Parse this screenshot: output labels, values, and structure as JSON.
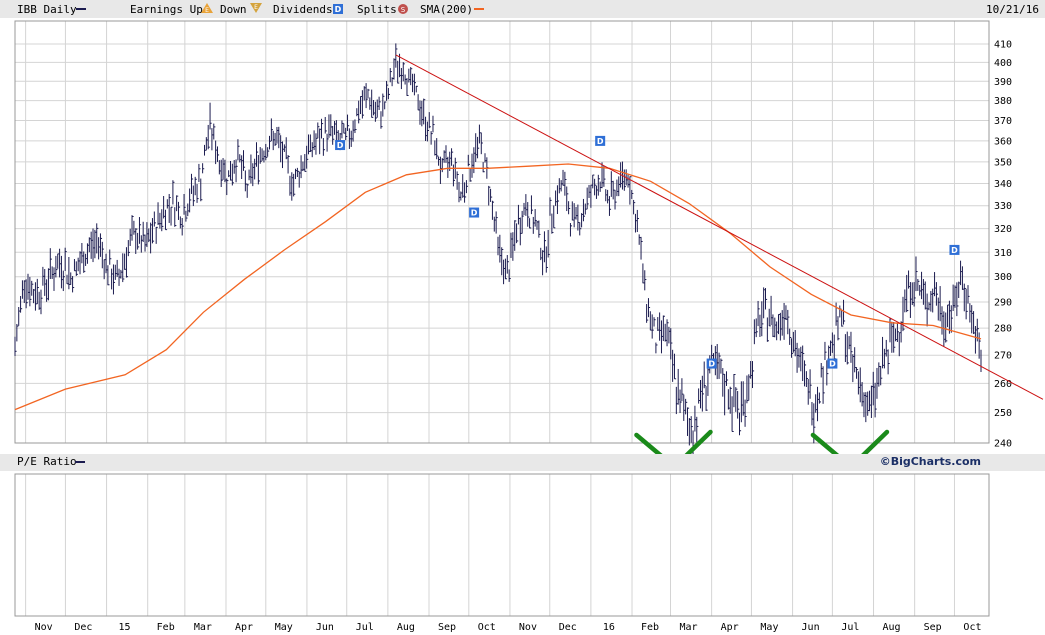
{
  "header": {
    "symbol_label": "IBB Daily",
    "earnings_up_label": "Earnings Up",
    "earnings_up_icon": "E",
    "down_label": "Down",
    "down_icon": "E",
    "dividends_label": "Dividends",
    "dividends_icon": "D",
    "splits_label": "Splits",
    "splits_icon": "S",
    "sma_label": "SMA(200)",
    "date": "10/21/16"
  },
  "colors": {
    "price": "#1b1b4f",
    "sma": "#f26522",
    "trendline": "#cc1111",
    "annotation": "#1a8a1a",
    "dividend": "#2f6fd6",
    "split": "#c0504d",
    "earnings_up": "#e8a33a",
    "earnings_down": "#d4a33c",
    "grid": "#d4d4d4",
    "band": "#e8e8e8"
  },
  "lower_panel": {
    "label": "P/E Ratio",
    "brand": "©BigCharts.com"
  },
  "chart_data": {
    "type": "ohlc",
    "y_ticks": [
      240,
      250,
      260,
      270,
      280,
      290,
      300,
      310,
      320,
      330,
      340,
      350,
      360,
      370,
      380,
      390,
      400,
      410
    ],
    "ylim": [
      240,
      410
    ],
    "y_scale": "log",
    "x_labels": [
      "Nov",
      "Dec",
      "15",
      "Feb",
      "Mar",
      "Apr",
      "May",
      "Jun",
      "Jul",
      "Aug",
      "Sep",
      "Oct",
      "Nov",
      "Dec",
      "16",
      "Feb",
      "Mar",
      "Apr",
      "May",
      "Jun",
      "Jul",
      "Aug",
      "Sep",
      "Oct"
    ],
    "price_points": [
      [
        "2014-10-24",
        272
      ],
      [
        "2014-10-31",
        300
      ],
      [
        "2014-11-07",
        293
      ],
      [
        "2014-11-14",
        296
      ],
      [
        "2014-11-21",
        302
      ],
      [
        "2014-11-28",
        306
      ],
      [
        "2014-12-05",
        300
      ],
      [
        "2014-12-12",
        305
      ],
      [
        "2014-12-19",
        312
      ],
      [
        "2014-12-26",
        315
      ],
      [
        "2015-01-02",
        303
      ],
      [
        "2015-01-09",
        298
      ],
      [
        "2015-01-16",
        310
      ],
      [
        "2015-01-23",
        318
      ],
      [
        "2015-01-30",
        312
      ],
      [
        "2015-02-06",
        320
      ],
      [
        "2015-02-13",
        328
      ],
      [
        "2015-02-20",
        332
      ],
      [
        "2015-02-27",
        326
      ],
      [
        "2015-03-06",
        335
      ],
      [
        "2015-03-13",
        342
      ],
      [
        "2015-03-20",
        368
      ],
      [
        "2015-03-27",
        350
      ],
      [
        "2015-04-03",
        343
      ],
      [
        "2015-04-10",
        353
      ],
      [
        "2015-04-17",
        338
      ],
      [
        "2015-04-24",
        350
      ],
      [
        "2015-05-01",
        358
      ],
      [
        "2015-05-08",
        362
      ],
      [
        "2015-05-15",
        352
      ],
      [
        "2015-05-22",
        340
      ],
      [
        "2015-05-29",
        350
      ],
      [
        "2015-06-05",
        358
      ],
      [
        "2015-06-12",
        362
      ],
      [
        "2015-06-19",
        365
      ],
      [
        "2015-06-26",
        360
      ],
      [
        "2015-07-03",
        363
      ],
      [
        "2015-07-10",
        375
      ],
      [
        "2015-07-17",
        383
      ],
      [
        "2015-07-24",
        372
      ],
      [
        "2015-07-31",
        380
      ],
      [
        "2015-08-07",
        400
      ],
      [
        "2015-08-14",
        395
      ],
      [
        "2015-08-21",
        385
      ],
      [
        "2015-08-28",
        372
      ],
      [
        "2015-09-04",
        362
      ],
      [
        "2015-09-11",
        345
      ],
      [
        "2015-09-18",
        352
      ],
      [
        "2015-09-25",
        335
      ],
      [
        "2015-10-02",
        348
      ],
      [
        "2015-10-09",
        360
      ],
      [
        "2015-10-16",
        340
      ],
      [
        "2015-10-23",
        312
      ],
      [
        "2015-10-30",
        300
      ],
      [
        "2015-11-06",
        320
      ],
      [
        "2015-11-13",
        330
      ],
      [
        "2015-11-20",
        322
      ],
      [
        "2015-11-27",
        308
      ],
      [
        "2015-12-04",
        332
      ],
      [
        "2015-12-11",
        340
      ],
      [
        "2015-12-18",
        322
      ],
      [
        "2015-12-25",
        326
      ],
      [
        "2016-01-01",
        336
      ],
      [
        "2016-01-08",
        342
      ],
      [
        "2016-01-15",
        332
      ],
      [
        "2016-01-22",
        340
      ],
      [
        "2016-01-29",
        345
      ],
      [
        "2016-02-05",
        320
      ],
      [
        "2016-02-12",
        290
      ],
      [
        "2016-02-19",
        275
      ],
      [
        "2016-02-26",
        280
      ],
      [
        "2016-03-04",
        262
      ],
      [
        "2016-03-11",
        250
      ],
      [
        "2016-03-18",
        244
      ],
      [
        "2016-03-25",
        258
      ],
      [
        "2016-04-01",
        266
      ],
      [
        "2016-04-08",
        262
      ],
      [
        "2016-04-15",
        256
      ],
      [
        "2016-04-22",
        250
      ],
      [
        "2016-04-29",
        260
      ],
      [
        "2016-05-06",
        282
      ],
      [
        "2016-05-13",
        286
      ],
      [
        "2016-05-20",
        280
      ],
      [
        "2016-05-27",
        288
      ],
      [
        "2016-06-03",
        272
      ],
      [
        "2016-06-10",
        262
      ],
      [
        "2016-06-17",
        252
      ],
      [
        "2016-06-24",
        265
      ],
      [
        "2016-07-01",
        275
      ],
      [
        "2016-07-08",
        284
      ],
      [
        "2016-07-15",
        268
      ],
      [
        "2016-07-22",
        260
      ],
      [
        "2016-07-29",
        250
      ],
      [
        "2016-08-05",
        262
      ],
      [
        "2016-08-12",
        272
      ],
      [
        "2016-08-19",
        278
      ],
      [
        "2016-08-26",
        294
      ],
      [
        "2016-09-02",
        298
      ],
      [
        "2016-09-09",
        290
      ],
      [
        "2016-09-16",
        294
      ],
      [
        "2016-09-23",
        283
      ],
      [
        "2016-09-30",
        288
      ],
      [
        "2016-10-07",
        300
      ],
      [
        "2016-10-14",
        284
      ],
      [
        "2016-10-21",
        268
      ]
    ],
    "sma200_points": [
      [
        "2014-10-24",
        251
      ],
      [
        "2014-12-01",
        258
      ],
      [
        "2015-01-15",
        263
      ],
      [
        "2015-02-15",
        272
      ],
      [
        "2015-03-15",
        286
      ],
      [
        "2015-04-15",
        299
      ],
      [
        "2015-05-15",
        311
      ],
      [
        "2015-06-15",
        323
      ],
      [
        "2015-07-15",
        336
      ],
      [
        "2015-08-15",
        344
      ],
      [
        "2015-09-15",
        347
      ],
      [
        "2015-10-15",
        347
      ],
      [
        "2015-11-15",
        348
      ],
      [
        "2015-12-15",
        349
      ],
      [
        "2016-01-15",
        347
      ],
      [
        "2016-02-15",
        341
      ],
      [
        "2016-03-15",
        331
      ],
      [
        "2016-04-15",
        318
      ],
      [
        "2016-05-15",
        304
      ],
      [
        "2016-06-15",
        293
      ],
      [
        "2016-07-15",
        285
      ],
      [
        "2016-08-15",
        282
      ],
      [
        "2016-09-15",
        281
      ],
      [
        "2016-10-21",
        276
      ]
    ],
    "trendline": [
      [
        "2015-08-07",
        404
      ],
      [
        "2016-10-21",
        266
      ]
    ],
    "dividends": [
      [
        "2015-06-26",
        358
      ],
      [
        "2015-10-05",
        327
      ],
      [
        "2016-01-08",
        360
      ],
      [
        "2016-04-01",
        267
      ],
      [
        "2016-07-01",
        267
      ],
      [
        "2016-10-01",
        311
      ]
    ],
    "annotations": [
      {
        "type": "checkmark",
        "x": "2016-03-04",
        "y": 240
      },
      {
        "type": "checkmark",
        "x": "2016-07-15",
        "y": 240
      }
    ]
  }
}
